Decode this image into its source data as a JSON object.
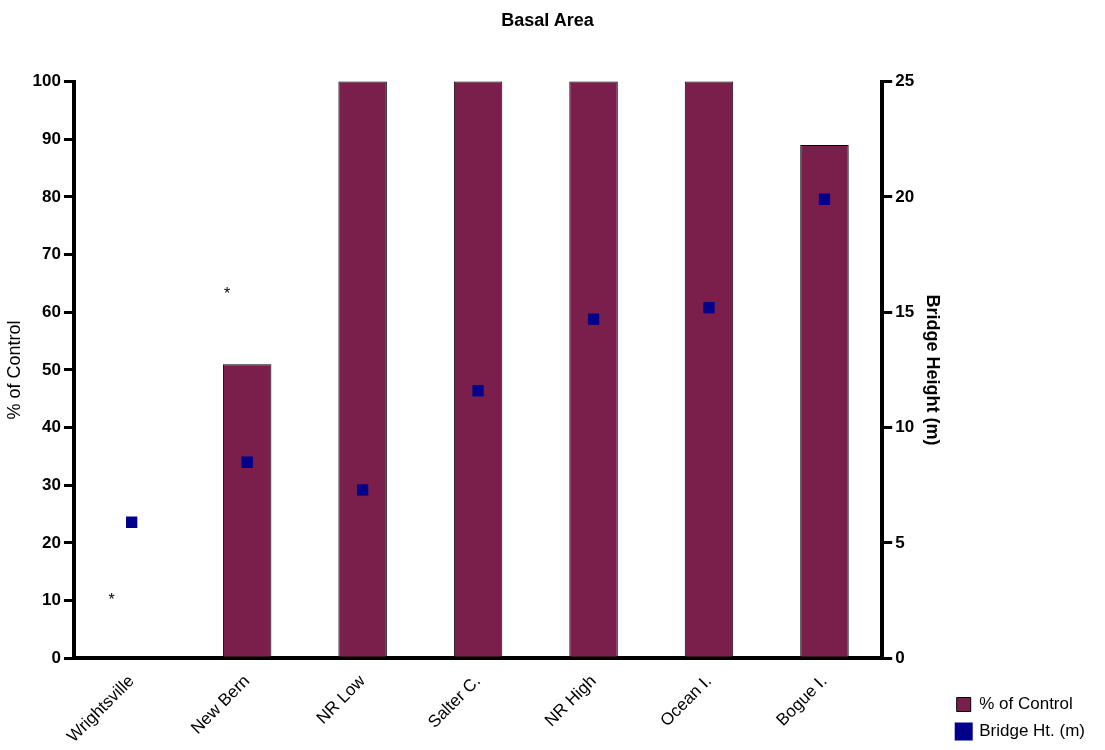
{
  "chart_data": {
    "type": "bar",
    "title": "Basal Area",
    "ylabel": "% of Control",
    "y2label": "Bridge Height (m)",
    "categories": [
      "Wrightsville",
      "New Bern",
      "NR Low",
      "Salter C.",
      "NR High",
      "Ocean I.",
      "Bogue I."
    ],
    "series": [
      {
        "name": "% of Control",
        "color": "#7a1f4c",
        "values": [
          0,
          51,
          100,
          100,
          100,
          100,
          89
        ]
      },
      {
        "name": "Bridge Ht. (m)",
        "type": "scatter",
        "axis": "y2",
        "color": "#00008b",
        "values": [
          5.9,
          8.5,
          7.3,
          11.6,
          14.7,
          15.2,
          19.9
        ]
      }
    ],
    "ylim": [
      0,
      100
    ],
    "yticks": [
      0,
      10,
      20,
      30,
      40,
      50,
      60,
      70,
      80,
      90,
      100
    ],
    "y2lim": [
      0,
      25
    ],
    "y2ticks": [
      0,
      5,
      10,
      15,
      20,
      25
    ],
    "annotations": [
      "*",
      "*"
    ],
    "legend": "bottom right",
    "grid": false,
    "marker": "square"
  }
}
